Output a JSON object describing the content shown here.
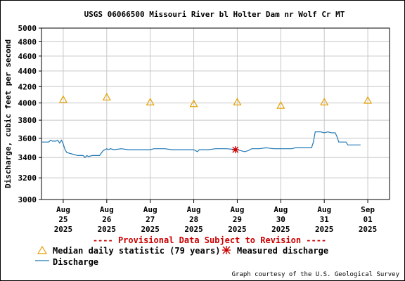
{
  "chart_data": {
    "type": "line",
    "title": "USGS 06066500 Missouri River bl Holter Dam nr Wolf Cr MT",
    "ylabel": "Discharge, cubic feet per second",
    "xlabel": "",
    "ylim": [
      3000,
      5000
    ],
    "y_log_scale": true,
    "y_ticks": [
      3000,
      3200,
      3400,
      3600,
      3800,
      4000,
      4200,
      4400,
      4600,
      4800,
      5000
    ],
    "x_tick_labels": [
      {
        "month": "Aug",
        "day": "25",
        "year": "2025"
      },
      {
        "month": "Aug",
        "day": "26",
        "year": "2025"
      },
      {
        "month": "Aug",
        "day": "27",
        "year": "2025"
      },
      {
        "month": "Aug",
        "day": "28",
        "year": "2025"
      },
      {
        "month": "Aug",
        "day": "29",
        "year": "2025"
      },
      {
        "month": "Aug",
        "day": "30",
        "year": "2025"
      },
      {
        "month": "Aug",
        "day": "31",
        "year": "2025"
      },
      {
        "month": "Sep",
        "day": "01",
        "year": "2025"
      }
    ],
    "grid": true,
    "series": [
      {
        "name": "Discharge",
        "color": "#1f77b4",
        "points": [
          [
            "2025-08-24 12:00",
            3560
          ],
          [
            "2025-08-24 14:00",
            3560
          ],
          [
            "2025-08-24 16:00",
            3560
          ],
          [
            "2025-08-24 17:00",
            3580
          ],
          [
            "2025-08-24 18:00",
            3570
          ],
          [
            "2025-08-24 20:00",
            3570
          ],
          [
            "2025-08-24 21:00",
            3580
          ],
          [
            "2025-08-24 22:00",
            3550
          ],
          [
            "2025-08-24 23:00",
            3580
          ],
          [
            "2025-08-25 00:00",
            3540
          ],
          [
            "2025-08-25 01:00",
            3480
          ],
          [
            "2025-08-25 02:00",
            3450
          ],
          [
            "2025-08-25 04:00",
            3440
          ],
          [
            "2025-08-25 06:00",
            3430
          ],
          [
            "2025-08-25 08:00",
            3420
          ],
          [
            "2025-08-25 11:00",
            3420
          ],
          [
            "2025-08-25 12:00",
            3400
          ],
          [
            "2025-08-25 13:00",
            3420
          ],
          [
            "2025-08-25 14:00",
            3410
          ],
          [
            "2025-08-25 16:00",
            3420
          ],
          [
            "2025-08-25 20:00",
            3420
          ],
          [
            "2025-08-25 22:00",
            3470
          ],
          [
            "2025-08-26 00:00",
            3490
          ],
          [
            "2025-08-26 01:00",
            3480
          ],
          [
            "2025-08-26 02:00",
            3490
          ],
          [
            "2025-08-26 04:00",
            3480
          ],
          [
            "2025-08-26 08:00",
            3490
          ],
          [
            "2025-08-26 12:00",
            3480
          ],
          [
            "2025-08-26 18:00",
            3480
          ],
          [
            "2025-08-27 00:00",
            3480
          ],
          [
            "2025-08-27 02:00",
            3490
          ],
          [
            "2025-08-27 08:00",
            3490
          ],
          [
            "2025-08-27 12:00",
            3480
          ],
          [
            "2025-08-27 18:00",
            3480
          ],
          [
            "2025-08-28 00:00",
            3480
          ],
          [
            "2025-08-28 02:00",
            3460
          ],
          [
            "2025-08-28 03:00",
            3480
          ],
          [
            "2025-08-28 08:00",
            3480
          ],
          [
            "2025-08-28 12:00",
            3490
          ],
          [
            "2025-08-28 18:00",
            3490
          ],
          [
            "2025-08-29 00:00",
            3480
          ],
          [
            "2025-08-29 04:00",
            3460
          ],
          [
            "2025-08-29 06:00",
            3470
          ],
          [
            "2025-08-29 08:00",
            3490
          ],
          [
            "2025-08-29 12:00",
            3490
          ],
          [
            "2025-08-29 16:00",
            3500
          ],
          [
            "2025-08-29 20:00",
            3490
          ],
          [
            "2025-08-30 00:00",
            3490
          ],
          [
            "2025-08-30 06:00",
            3490
          ],
          [
            "2025-08-30 08:00",
            3500
          ],
          [
            "2025-08-30 12:00",
            3500
          ],
          [
            "2025-08-30 17:00",
            3500
          ],
          [
            "2025-08-30 18:00",
            3560
          ],
          [
            "2025-08-30 19:00",
            3670
          ],
          [
            "2025-08-30 22:00",
            3670
          ],
          [
            "2025-08-31 00:00",
            3660
          ],
          [
            "2025-08-31 02:00",
            3670
          ],
          [
            "2025-08-31 04:00",
            3660
          ],
          [
            "2025-08-31 06:00",
            3660
          ],
          [
            "2025-08-31 07:00",
            3620
          ],
          [
            "2025-08-31 08:00",
            3560
          ],
          [
            "2025-08-31 12:00",
            3560
          ],
          [
            "2025-08-31 13:00",
            3530
          ],
          [
            "2025-08-31 20:00",
            3530
          ]
        ]
      },
      {
        "name": "Median daily statistic (79 years)",
        "color": "#e69f00",
        "marker": "triangle",
        "points": [
          [
            "2025-08-25 00:00",
            4040
          ],
          [
            "2025-08-26 00:00",
            4070
          ],
          [
            "2025-08-27 00:00",
            4010
          ],
          [
            "2025-08-28 00:00",
            3990
          ],
          [
            "2025-08-29 00:00",
            4010
          ],
          [
            "2025-08-30 00:00",
            3970
          ],
          [
            "2025-08-31 00:00",
            4010
          ],
          [
            "2025-09-01 00:00",
            4030
          ]
        ]
      },
      {
        "name": "Measured discharge",
        "color": "#cc0000",
        "marker": "asterisk",
        "points": [
          [
            "2025-08-28 23:00",
            3480
          ]
        ]
      }
    ],
    "annotations": [
      "---- Provisional Data Subject to Revision ----"
    ],
    "credit": "Graph courtesy of the U.S. Geological Survey"
  },
  "legend": {
    "median": "Median daily statistic (79 years)",
    "measured": "Measured discharge",
    "discharge": "Discharge"
  }
}
